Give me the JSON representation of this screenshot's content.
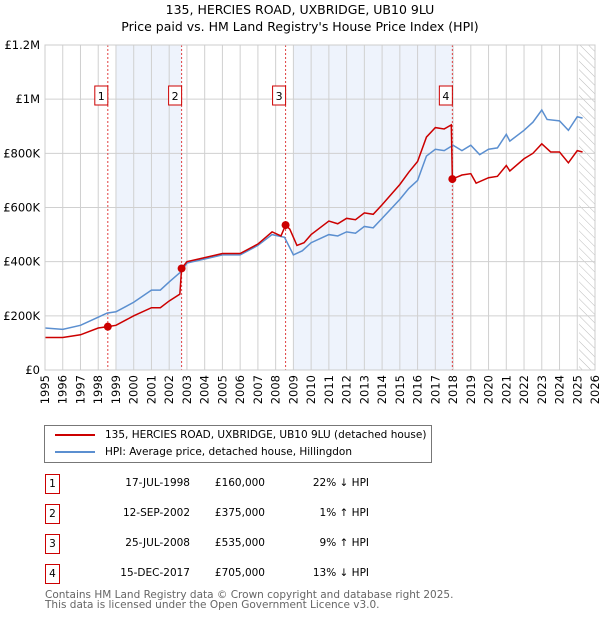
{
  "chart_data": {
    "type": "line",
    "title": "135, HERCIES ROAD, UXBRIDGE, UB10 9LU",
    "subtitle": "Price paid vs. HM Land Registry's House Price Index (HPI)",
    "xlim": [
      1995,
      2026
    ],
    "ylim": [
      0,
      1200000
    ],
    "x_ticks": [
      "1995",
      "1996",
      "1997",
      "1998",
      "1999",
      "2000",
      "2001",
      "2002",
      "2003",
      "2004",
      "2005",
      "2006",
      "2007",
      "2008",
      "2009",
      "2010",
      "2011",
      "2012",
      "2013",
      "2014",
      "2015",
      "2016",
      "2017",
      "2018",
      "2019",
      "2020",
      "2021",
      "2022",
      "2023",
      "2024",
      "2025",
      "2026"
    ],
    "y_ticks": [
      {
        "v": 0,
        "label": "£0"
      },
      {
        "v": 200000,
        "label": "£200K"
      },
      {
        "v": 400000,
        "label": "£400K"
      },
      {
        "v": 600000,
        "label": "£600K"
      },
      {
        "v": 800000,
        "label": "£800K"
      },
      {
        "v": 1000000,
        "label": "£1M"
      },
      {
        "v": 1200000,
        "label": "£1.2M"
      }
    ],
    "grid": true,
    "shaded_ranges": [
      [
        1999,
        2002.7
      ],
      [
        2009,
        2017.96
      ]
    ],
    "forecast_from": 2025.1,
    "series": [
      {
        "name": "135, HERCIES ROAD, UXBRIDGE, UB10 9LU (detached house)",
        "color": "#cc0000",
        "x": [
          1995,
          1996,
          1997,
          1998,
          1998.54,
          1999,
          2000,
          2001,
          2001.5,
          2002,
          2002.6,
          2002.7,
          2003,
          2004,
          2005,
          2006,
          2007,
          2007.8,
          2008.3,
          2008.56,
          2008.8,
          2009.2,
          2009.6,
          2010,
          2011,
          2011.5,
          2012,
          2012.5,
          2013,
          2013.5,
          2014,
          2015,
          2015.5,
          2016,
          2016.5,
          2017,
          2017.5,
          2017.9,
          2017.96,
          2018.5,
          2019,
          2019.3,
          2020,
          2020.5,
          2021,
          2021.2,
          2022,
          2022.5,
          2023,
          2023.5,
          2024,
          2024.5,
          2025,
          2025.3
        ],
        "values": [
          120000,
          120000,
          130000,
          155000,
          160000,
          165000,
          200000,
          230000,
          230000,
          255000,
          280000,
          375000,
          400000,
          415000,
          430000,
          430000,
          465000,
          510000,
          495000,
          535000,
          520000,
          460000,
          470000,
          500000,
          550000,
          540000,
          560000,
          555000,
          580000,
          575000,
          610000,
          685000,
          730000,
          770000,
          860000,
          895000,
          890000,
          905000,
          705000,
          720000,
          725000,
          690000,
          710000,
          715000,
          755000,
          735000,
          780000,
          800000,
          835000,
          805000,
          805000,
          765000,
          810000,
          805000
        ]
      },
      {
        "name": "HPI: Average price, detached house, Hillingdon",
        "color": "#5b8fd0",
        "x": [
          1995,
          1996,
          1997,
          1998,
          1998.5,
          1999,
          2000,
          2001,
          2001.5,
          2002,
          2002.7,
          2003,
          2004,
          2005,
          2006,
          2007,
          2007.8,
          2008.5,
          2009,
          2009.5,
          2010,
          2011,
          2011.5,
          2012,
          2012.5,
          2013,
          2013.5,
          2014,
          2015,
          2015.5,
          2016,
          2016.5,
          2017,
          2017.5,
          2018,
          2018.5,
          2019,
          2019.5,
          2020,
          2020.5,
          2021,
          2021.2,
          2022,
          2022.5,
          2023,
          2023.3,
          2024,
          2024.5,
          2025,
          2025.3
        ],
        "values": [
          155000,
          150000,
          165000,
          195000,
          210000,
          215000,
          250000,
          295000,
          295000,
          325000,
          365000,
          395000,
          410000,
          425000,
          425000,
          460000,
          500000,
          490000,
          425000,
          440000,
          470000,
          500000,
          495000,
          510000,
          505000,
          530000,
          525000,
          560000,
          630000,
          670000,
          700000,
          790000,
          815000,
          810000,
          830000,
          810000,
          830000,
          795000,
          815000,
          820000,
          870000,
          845000,
          885000,
          915000,
          960000,
          925000,
          920000,
          885000,
          935000,
          930000
        ]
      }
    ],
    "sales": [
      {
        "n": "1",
        "x": 1998.54,
        "value": 160000
      },
      {
        "n": "2",
        "x": 2002.7,
        "value": 375000
      },
      {
        "n": "3",
        "x": 2008.56,
        "value": 535000
      },
      {
        "n": "4",
        "x": 2017.96,
        "value": 705000
      }
    ]
  },
  "legend": {
    "property": "135, HERCIES ROAD, UXBRIDGE, UB10 9LU (detached house)",
    "hpi": "HPI: Average price, detached house, Hillingdon"
  },
  "sales_table": [
    {
      "n": "1",
      "date": "17-JUL-1998",
      "price": "£160,000",
      "hpi": "22% ↓ HPI"
    },
    {
      "n": "2",
      "date": "12-SEP-2002",
      "price": "£375,000",
      "hpi": "1% ↑ HPI"
    },
    {
      "n": "3",
      "date": "25-JUL-2008",
      "price": "£535,000",
      "hpi": "9% ↑ HPI"
    },
    {
      "n": "4",
      "date": "15-DEC-2017",
      "price": "£705,000",
      "hpi": "13% ↓ HPI"
    }
  ],
  "footer": {
    "line1": "Contains HM Land Registry data © Crown copyright and database right 2025.",
    "line2": "This data is licensed under the Open Government Licence v3.0."
  }
}
